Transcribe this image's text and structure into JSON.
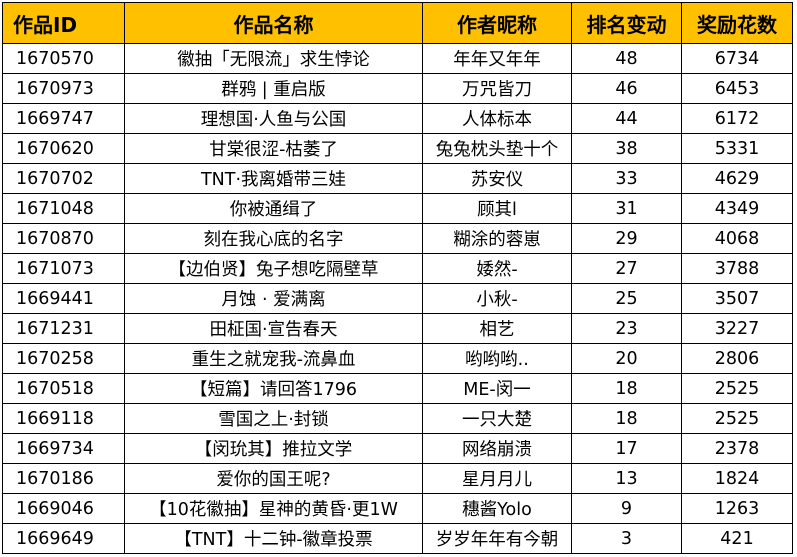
{
  "table": {
    "columns": [
      "作品ID",
      "作品名称",
      "作者昵称",
      "排名变动",
      "奖励花数"
    ],
    "header_color": "#FFC000",
    "rows": [
      [
        "1670570",
        "徽抽「无限流」求生悖论",
        "年年又年年",
        "48",
        "6734"
      ],
      [
        "1670973",
        "群鸦 | 重启版",
        "万咒皆刀",
        "46",
        "6453"
      ],
      [
        "1669747",
        "理想国·人鱼与公国",
        "人体标本",
        "44",
        "6172"
      ],
      [
        "1670620",
        "甘棠很涩-枯萎了",
        "兔兔枕头垫十个",
        "38",
        "5331"
      ],
      [
        "1670702",
        "TNT·我离婚带三娃",
        "苏安仪",
        "33",
        "4629"
      ],
      [
        "1671048",
        "你被通缉了",
        "顾其l",
        "31",
        "4349"
      ],
      [
        "1670870",
        "刻在我心底的名字",
        "糊涂的蓉崽",
        "29",
        "4068"
      ],
      [
        "1671073",
        "【边伯贤】兔子想吃隔壁草",
        "婑然-",
        "27",
        "3788"
      ],
      [
        "1669441",
        "月蚀 · 爱满离",
        "小秋-",
        "25",
        "3507"
      ],
      [
        "1671231",
        "田柾国·宣告春天",
        "相艺",
        "23",
        "3227"
      ],
      [
        "1670258",
        "重生之就宠我-流鼻血",
        "哟哟哟..",
        "20",
        "2806"
      ],
      [
        "1670518",
        "【短篇】请回答1796",
        "ME-闵一",
        "18",
        "2525"
      ],
      [
        "1669118",
        "雪国之上·封锁",
        "一只大楚",
        "18",
        "2525"
      ],
      [
        "1669734",
        "【闵玧其】推拉文学",
        "网络崩溃",
        "17",
        "2378"
      ],
      [
        "1670186",
        "爱你的国王呢?",
        "星月月儿",
        "13",
        "1824"
      ],
      [
        "1669046",
        "【10花徽抽】星神的黄昏·更1W",
        "穗酱Yolo",
        "9",
        "1263"
      ],
      [
        "1669649",
        "【TNT】十二钟-徽章投票",
        "岁岁年年有今朝",
        "3",
        "421"
      ]
    ]
  }
}
